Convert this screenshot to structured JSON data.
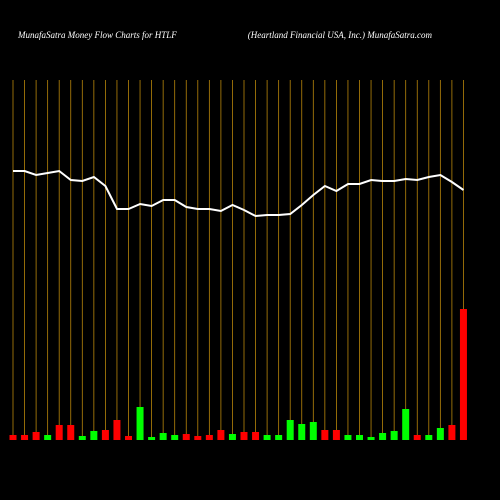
{
  "chart_data": [
    {
      "type": "line",
      "title": "MunafaSatra  Money Flow  Charts for HTLF",
      "subtitle": "(Heartland Financial USA, Inc.) MunafaSatra.com",
      "color": "#ffffff",
      "grid_color": "#b8860b",
      "values": [
        269,
        269,
        265,
        267,
        269,
        260,
        259,
        263,
        254,
        231,
        231,
        236,
        234,
        240,
        240,
        233,
        231,
        231,
        229,
        235,
        230,
        224,
        225,
        225,
        226,
        235,
        245,
        254,
        249,
        256,
        256,
        260,
        259,
        259,
        261,
        260,
        263,
        265,
        258,
        250
      ],
      "ylim": [
        0,
        360
      ]
    },
    {
      "type": "bar",
      "values": [
        5,
        5,
        8,
        5,
        15,
        15,
        4,
        9,
        10,
        20,
        4,
        33,
        3,
        7,
        5,
        6,
        4,
        5,
        10,
        6,
        8,
        8,
        5,
        5,
        20,
        16,
        18,
        10,
        10,
        5,
        5,
        3,
        7,
        9,
        31,
        5,
        5,
        12,
        15,
        131
      ],
      "colors": [
        "#ff0000",
        "#ff0000",
        "#ff0000",
        "#00ff00",
        "#ff0000",
        "#ff0000",
        "#00ff00",
        "#00ff00",
        "#ff0000",
        "#ff0000",
        "#ff0000",
        "#00ff00",
        "#00ff00",
        "#00ff00",
        "#00ff00",
        "#ff0000",
        "#ff0000",
        "#ff0000",
        "#ff0000",
        "#00ff00",
        "#ff0000",
        "#ff0000",
        "#00ff00",
        "#00ff00",
        "#00ff00",
        "#00ff00",
        "#00ff00",
        "#ff0000",
        "#ff0000",
        "#00ff00",
        "#00ff00",
        "#00ff00",
        "#00ff00",
        "#00ff00",
        "#00ff00",
        "#ff0000",
        "#00ff00",
        "#00ff00",
        "#ff0000",
        "#ff0000"
      ],
      "ylim": [
        0,
        360
      ]
    }
  ]
}
